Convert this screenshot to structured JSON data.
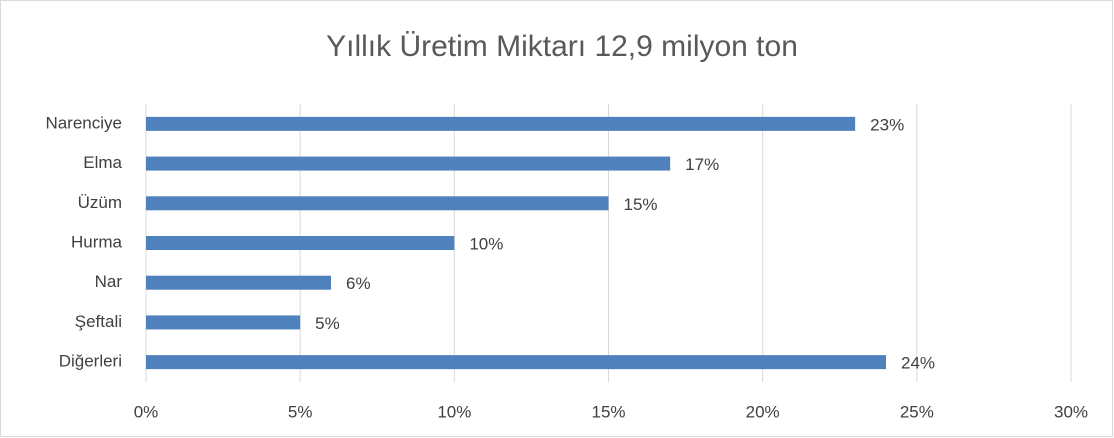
{
  "chart_data": {
    "type": "bar",
    "orientation": "horizontal",
    "title": "Yıllık Üretim Miktarı 12,9 milyon ton",
    "categories": [
      "Narenciye",
      "Elma",
      "Üzüm",
      "Hurma",
      "Nar",
      "Şeftali",
      "Diğerleri"
    ],
    "values": [
      23,
      17,
      15,
      10,
      6,
      5,
      24
    ],
    "value_labels": [
      "23%",
      "17%",
      "15%",
      "10%",
      "6%",
      "5%",
      "24%"
    ],
    "color": "#4f81bd",
    "xlim": [
      0,
      30
    ],
    "xticks": [
      {
        "value": 0,
        "label": "0%"
      },
      {
        "value": 5,
        "label": "5%"
      },
      {
        "value": 10,
        "label": "10%"
      },
      {
        "value": 15,
        "label": "15%"
      },
      {
        "value": 20,
        "label": "20%"
      },
      {
        "value": 25,
        "label": "25%"
      },
      {
        "value": 30,
        "label": "30%"
      }
    ],
    "grid": true
  }
}
